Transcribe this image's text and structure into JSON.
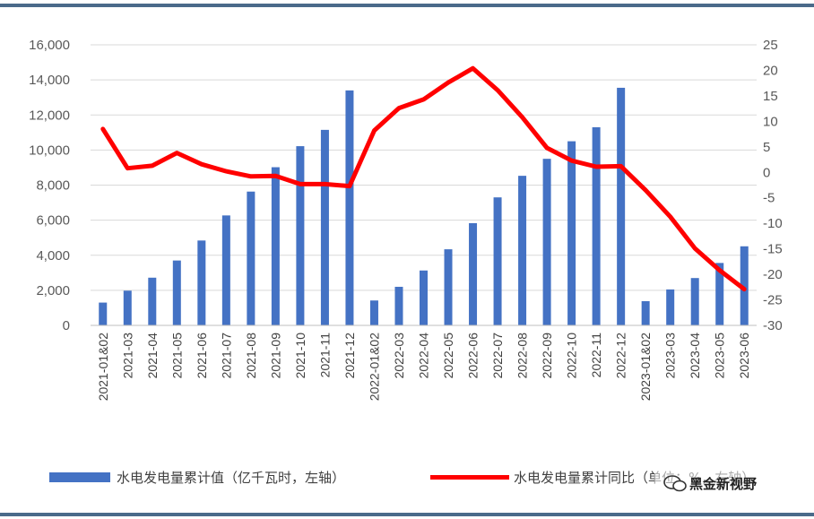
{
  "chart_data": {
    "type": "bar",
    "categories": [
      "2021-01&02",
      "2021-03",
      "2021-04",
      "2021-05",
      "2021-06",
      "2021-07",
      "2021-08",
      "2021-09",
      "2021-10",
      "2021-11",
      "2021-12",
      "2022-01&02",
      "2022-03",
      "2022-04",
      "2022-05",
      "2022-06",
      "2022-07",
      "2022-08",
      "2022-09",
      "2022-10",
      "2022-11",
      "2022-12",
      "2023-01&02",
      "2023-03",
      "2023-04",
      "2023-05",
      "2023-06"
    ],
    "series": [
      {
        "name": "水电发电量累计值（亿千瓦时，左轴）",
        "type": "bar",
        "axis": "left",
        "color": "#4472c4",
        "values": [
          1300,
          1980,
          2720,
          3700,
          4840,
          6270,
          7630,
          9020,
          10220,
          11150,
          13400,
          1420,
          2200,
          3130,
          4340,
          5830,
          7300,
          8530,
          9500,
          10500,
          11300,
          13550,
          1380,
          2050,
          2700,
          3560,
          4510
        ]
      },
      {
        "name": "水电发电量累计同比（单位：%，右轴）",
        "type": "line",
        "axis": "right",
        "color": "#ff0000",
        "values": [
          8.5,
          0.8,
          1.3,
          3.8,
          1.6,
          0.2,
          -0.8,
          -0.7,
          -2.3,
          -2.3,
          -2.7,
          8.2,
          12.6,
          14.3,
          17.6,
          20.4,
          16.1,
          10.8,
          4.8,
          2.3,
          1.1,
          1.2,
          -3.5,
          -8.7,
          -14.9,
          -19.2,
          -22.9
        ]
      }
    ],
    "y_left": {
      "ylim": [
        0,
        16000
      ],
      "ticks": [
        "0",
        "2,000",
        "4,000",
        "6,000",
        "8,000",
        "10,000",
        "12,000",
        "14,000",
        "16,000"
      ]
    },
    "y_right": {
      "ylim": [
        -30,
        25
      ],
      "ticks": [
        "-30",
        "-25",
        "-20",
        "-15",
        "-10",
        "-5",
        "0",
        "5",
        "10",
        "15",
        "20",
        "25"
      ]
    },
    "grid": true,
    "legend_position": "bottom",
    "title": "",
    "xlabel": "",
    "ylabel": ""
  },
  "legend": {
    "bar_label": "水电发电量累计值（亿千瓦时，左轴）",
    "line_label": "水电发电量累计同比（单位：%，右轴）"
  },
  "watermark": {
    "text": "黑金新视野",
    "icon": "wechat-icon"
  }
}
